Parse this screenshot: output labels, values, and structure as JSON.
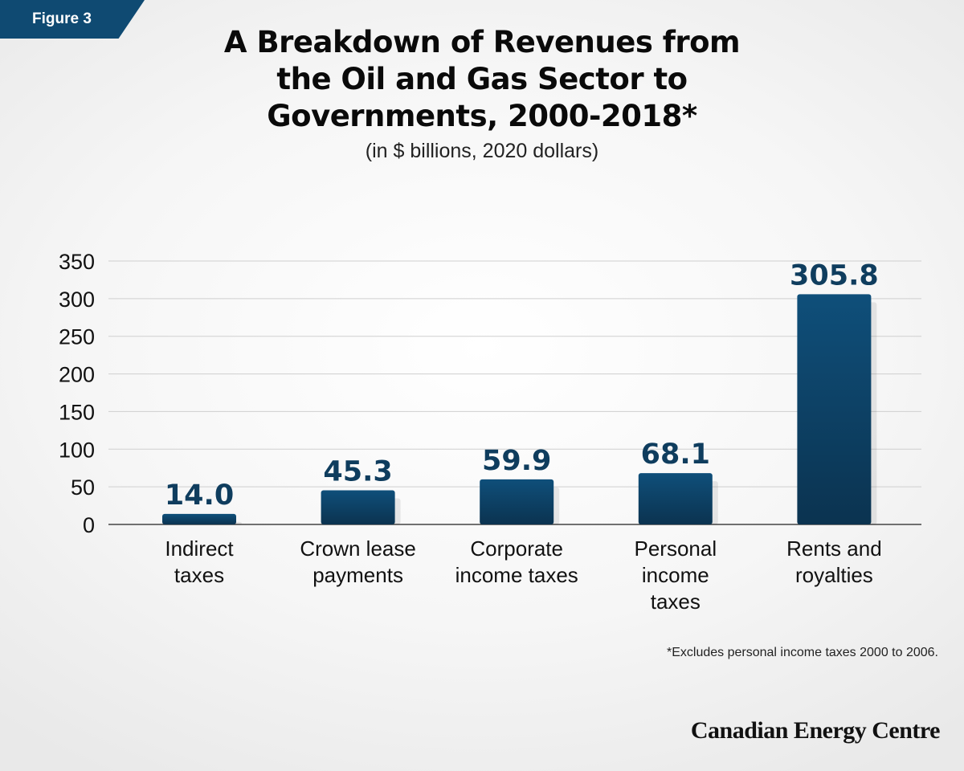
{
  "figure_label": "Figure 3",
  "footnote": "*Excludes personal income taxes 2000 to 2006.",
  "brand": "Canadian Energy Centre",
  "colors": {
    "bar_top": "#0f4f7a",
    "bar_bottom": "#0b3350",
    "figure_tag": "#0f4a72",
    "label": "#0f3d5e"
  },
  "chart_data": {
    "type": "bar",
    "title": "A Breakdown of Revenues from the Oil and Gas Sector to Governments, 2000-2018*",
    "title_lines": [
      "A Breakdown of Revenues from",
      "the Oil and Gas Sector to",
      "Governments, 2000-2018*"
    ],
    "subtitle": "(in $ billions, 2020 dollars)",
    "categories": [
      "Indirect taxes",
      "Crown lease payments",
      "Corporate income taxes",
      "Personal income taxes",
      "Rents and royalties"
    ],
    "category_lines": [
      [
        "Indirect",
        "taxes"
      ],
      [
        "Crown lease",
        "payments"
      ],
      [
        "Corporate",
        "income taxes"
      ],
      [
        "Personal",
        "income",
        "taxes"
      ],
      [
        "Rents and",
        "royalties"
      ]
    ],
    "values": [
      14.0,
      45.3,
      59.9,
      68.1,
      305.8
    ],
    "value_labels": [
      "14.0",
      "45.3",
      "59.9",
      "68.1",
      "305.8"
    ],
    "ylim": [
      0,
      350
    ],
    "yticks": [
      0,
      50,
      100,
      150,
      200,
      250,
      300,
      350
    ],
    "grid": true,
    "xlabel": "",
    "ylabel": ""
  }
}
